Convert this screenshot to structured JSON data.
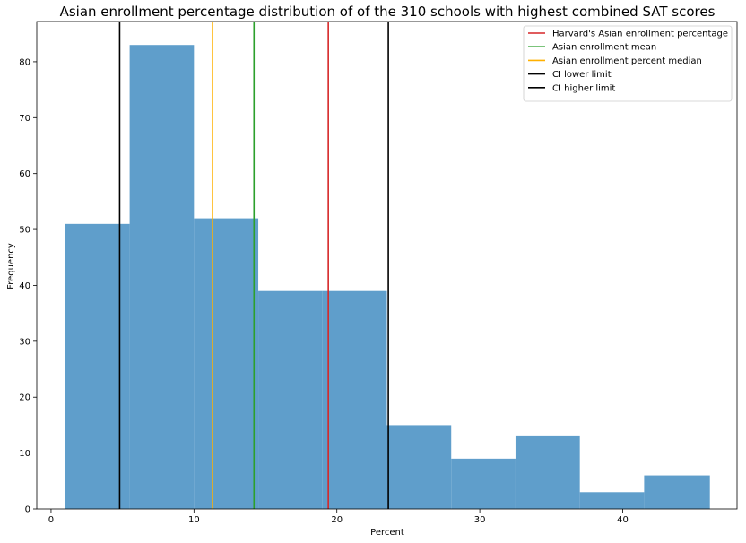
{
  "chart_data": {
    "type": "bar",
    "title": "Asian enrollment percentage distribution of of the 310 schools with highest combined SAT scores",
    "xlabel": "Percent",
    "ylabel": "Frequency",
    "xlim": [
      -1,
      48
    ],
    "ylim": [
      0,
      87.2
    ],
    "xticks": [
      0,
      10,
      20,
      30,
      40
    ],
    "yticks": [
      0,
      10,
      20,
      30,
      40,
      50,
      60,
      70,
      80
    ],
    "grid": false,
    "legend_position": "top-right",
    "bar_color": "#5f9ecb",
    "bins": [
      {
        "start": 1.0,
        "end": 5.5,
        "count": 51
      },
      {
        "start": 5.5,
        "end": 10.0,
        "count": 83
      },
      {
        "start": 10.0,
        "end": 14.5,
        "count": 52
      },
      {
        "start": 14.5,
        "end": 19.0,
        "count": 39
      },
      {
        "start": 19.0,
        "end": 23.5,
        "count": 39
      },
      {
        "start": 23.5,
        "end": 28.0,
        "count": 15
      },
      {
        "start": 28.0,
        "end": 32.5,
        "count": 9
      },
      {
        "start": 32.5,
        "end": 37.0,
        "count": 13
      },
      {
        "start": 37.0,
        "end": 41.5,
        "count": 3
      },
      {
        "start": 41.5,
        "end": 46.1,
        "count": 6
      }
    ],
    "reference_lines": [
      {
        "name": "Harvard's Asian enrollment percentage",
        "x": 19.4,
        "color": "#d62728"
      },
      {
        "name": "Asian enrollment mean",
        "x": 14.2,
        "color": "#2ca02c"
      },
      {
        "name": "Asian enrollment percent median",
        "x": 11.3,
        "color": "#ffb000"
      },
      {
        "name": "CI lower limit",
        "x": 4.8,
        "color": "#000000"
      },
      {
        "name": "CI higher limit",
        "x": 23.6,
        "color": "#000000"
      }
    ]
  }
}
